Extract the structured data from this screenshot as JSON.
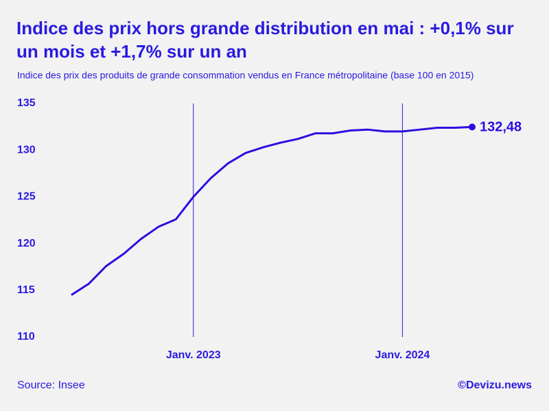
{
  "chart_data": {
    "type": "line",
    "title": "Indice des prix hors grande distribution en mai : +0,1% sur un mois et +1,7% sur un an",
    "subtitle": "Indice des prix des produits de grande consommation vendus en France métropolitaine (base 100 en 2015)",
    "source": "Source: Insee",
    "credit": "©Devizu.news",
    "x": [
      "2022-06",
      "2022-07",
      "2022-08",
      "2022-09",
      "2022-10",
      "2022-11",
      "2022-12",
      "2023-01",
      "2023-02",
      "2023-03",
      "2023-04",
      "2023-05",
      "2023-06",
      "2023-07",
      "2023-08",
      "2023-09",
      "2023-10",
      "2023-11",
      "2023-12",
      "2024-01",
      "2024-02",
      "2024-03",
      "2024-04",
      "2024-05"
    ],
    "series": [
      {
        "name": "Indice des prix",
        "color": "#2a0ee0",
        "values": [
          114.5,
          115.7,
          117.6,
          118.9,
          120.5,
          121.8,
          122.6,
          125.0,
          127.0,
          128.6,
          129.7,
          130.3,
          130.8,
          131.2,
          131.8,
          131.8,
          132.1,
          132.2,
          132.0,
          132.0,
          132.2,
          132.4,
          132.4,
          132.48
        ],
        "value_labels": [
          null,
          null,
          null,
          null,
          null,
          null,
          null,
          null,
          null,
          null,
          null,
          null,
          null,
          null,
          null,
          null,
          null,
          null,
          null,
          null,
          null,
          null,
          null,
          "132,48"
        ]
      }
    ],
    "xlim": [
      "2022-06",
      "2024-05"
    ],
    "xticks": [
      {
        "value": "2023-01",
        "label": "Janv. 2023"
      },
      {
        "value": "2024-01",
        "label": "Janv. 2024"
      }
    ],
    "ylim": [
      110,
      135
    ],
    "yticks": [
      110,
      115,
      120,
      125,
      130,
      135
    ],
    "grid": false
  }
}
